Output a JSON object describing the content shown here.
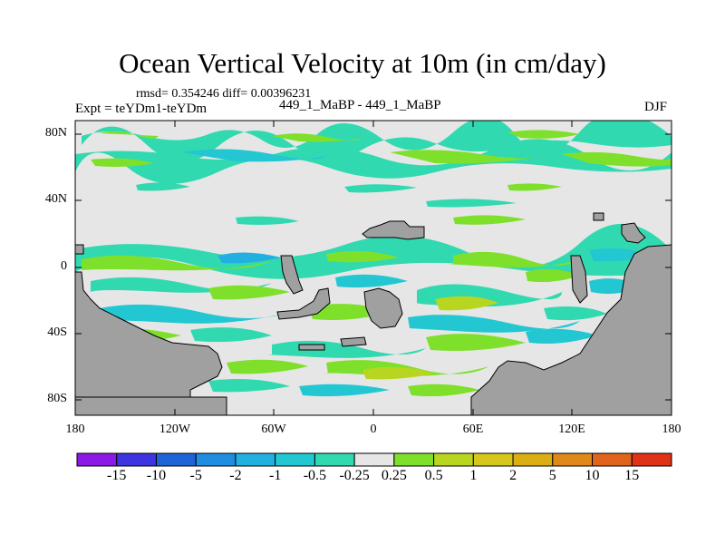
{
  "title": "Ocean Vertical Velocity at 10m (in cm/day)",
  "stats": "rmsd= 0.354246 diff= 0.00396231",
  "experiment": "Expt = teYDm1-teYDm",
  "runs": "449_1_MaBP - 449_1_MaBP",
  "season": "DJF",
  "y_ticks": [
    "80N",
    "40N",
    "0",
    "40S",
    "80S"
  ],
  "x_ticks": [
    "180",
    "120W",
    "60W",
    "0",
    "60E",
    "120E",
    "180"
  ],
  "colorbar": {
    "colors": [
      "#8c1ae6",
      "#3c35e0",
      "#1f63d9",
      "#1f8ee0",
      "#22b0e0",
      "#22c7d2",
      "#31d9b0",
      "#e6e6e6",
      "#7ee02a",
      "#b8d620",
      "#d7c71b",
      "#dcae16",
      "#e0891b",
      "#e0641c",
      "#e03216"
    ],
    "labels": [
      "-15",
      "-10",
      "-5",
      "-2",
      "-1",
      "-0.5",
      "-0.25",
      "0.25",
      "0.5",
      "1",
      "2",
      "5",
      "10",
      "15"
    ]
  },
  "colors": {
    "land": "#a0a0a0",
    "neutral": "#e6e6e6"
  }
}
